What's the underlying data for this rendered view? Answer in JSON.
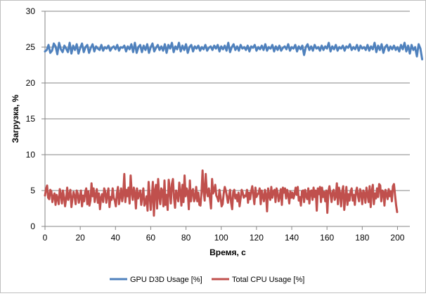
{
  "chart_data": {
    "type": "line",
    "xlabel": "Время, с",
    "ylabel": "Загрузка, %",
    "xlim": [
      0,
      207
    ],
    "ylim": [
      0,
      30
    ],
    "x_ticks": [
      0,
      20,
      40,
      60,
      80,
      100,
      120,
      140,
      160,
      180,
      200
    ],
    "y_ticks": [
      0,
      5,
      10,
      15,
      20,
      25,
      30
    ],
    "grid": "horizontal",
    "legend_position": "bottom",
    "series": [
      {
        "name": "GPU D3D Usage [%]",
        "color": "#4F81BD",
        "values": [
          24.4,
          24.6,
          25.3,
          24.2,
          24.5,
          25.5,
          25.1,
          24.0,
          25.6,
          24.7,
          24.3,
          25.2,
          24.8,
          24.3,
          25.6,
          24.1,
          25.2,
          24.6,
          25.4,
          24.1,
          24.9,
          25.5,
          24.3,
          25.0,
          25.3,
          24.2,
          24.9,
          25.4,
          24.4,
          25.1,
          24.8,
          24.6,
          25.3,
          24.5,
          25.0,
          24.8,
          25.2,
          24.5,
          24.9,
          25.1,
          24.7,
          25.3,
          24.5,
          25.0,
          24.9,
          25.2,
          24.4,
          25.1,
          24.7,
          25.4,
          24.3,
          25.6,
          24.2,
          25.0,
          25.3,
          24.3,
          25.2,
          24.6,
          25.4,
          24.2,
          25.0,
          25.5,
          24.4,
          24.9,
          25.3,
          24.6,
          25.1,
          24.5,
          25.4,
          24.2,
          25.3,
          24.8,
          25.6,
          24.3,
          25.1,
          24.7,
          25.6,
          24.4,
          25.2,
          24.6,
          25.4,
          24.2,
          25.0,
          25.3,
          24.4,
          25.1,
          24.8,
          25.2,
          24.5,
          25.0,
          24.7,
          25.3,
          24.5,
          24.9,
          25.1,
          24.6,
          25.2,
          24.8,
          25.3,
          24.4,
          25.1,
          24.7,
          25.2,
          24.5,
          25.6,
          24.3,
          25.0,
          25.4,
          24.6,
          25.1,
          24.5,
          25.3,
          24.8,
          25.0,
          24.6,
          25.2,
          24.4,
          25.1,
          24.9,
          25.3,
          24.5,
          25.0,
          24.7,
          25.2,
          24.6,
          25.4,
          24.5,
          25.0,
          24.8,
          25.3,
          24.4,
          25.1,
          24.6,
          25.2,
          24.5,
          24.9,
          25.1,
          24.7,
          25.4,
          24.5,
          25.0,
          24.8,
          25.3,
          24.4,
          25.1,
          24.7,
          25.2,
          23.9,
          25.0,
          25.4,
          24.6,
          25.1,
          24.5,
          25.3,
          24.8,
          25.0,
          24.5,
          25.2,
          24.6,
          25.1,
          24.8,
          25.6,
          24.4,
          25.1,
          24.7,
          25.3,
          24.5,
          25.0,
          24.8,
          25.2,
          24.5,
          25.1,
          24.9,
          25.4,
          24.6,
          25.0,
          24.7,
          25.3,
          24.5,
          25.2,
          24.8,
          25.0,
          24.6,
          25.3,
          24.5,
          25.1,
          24.7,
          25.6,
          24.3,
          25.2,
          24.6,
          25.4,
          24.2,
          25.0,
          25.3,
          24.5,
          25.1,
          24.7,
          25.2,
          24.6,
          25.0,
          24.4,
          25.3,
          24.7,
          25.6,
          24.4,
          25.2,
          24.1,
          25.3,
          24.6,
          25.0,
          23.7,
          25.4,
          24.8,
          23.3
        ],
        "x_start": 0,
        "x_step": 1
      },
      {
        "name": "Total CPU Usage [%]",
        "color": "#C0504D",
        "values": [
          4.3,
          5.2,
          5.7,
          4.0,
          3.8,
          5.1,
          4.9,
          3.4,
          4.2,
          4.6,
          3.0,
          4.4,
          3.9,
          3.1,
          5.2,
          4.5,
          3.2,
          5.0,
          4.1,
          2.8,
          3.9,
          5.4,
          3.7,
          4.4,
          5.1,
          2.7,
          3.9,
          4.8,
          4.2,
          3.1,
          5.0,
          4.6,
          3.3,
          4.1,
          5.0,
          2.8,
          4.3,
          3.5,
          4.8,
          5.3,
          3.1,
          4.9,
          2.9,
          3.6,
          6.0,
          4.2,
          5.3,
          3.4,
          4.4,
          5.2,
          3.3,
          4.6,
          2.4,
          4.0,
          4.5,
          3.4,
          5.3,
          4.8,
          3.3,
          4.4,
          5.3,
          2.7,
          4.1,
          3.7,
          5.3,
          4.0,
          3.6,
          2.8,
          4.6,
          5.5,
          3.1,
          4.2,
          5.3,
          3.5,
          4.5,
          7.3,
          3.4,
          5.1,
          4.2,
          5.4,
          3.2,
          7.1,
          4.8,
          3.7,
          5.4,
          4.6,
          2.5,
          5.3,
          3.9,
          4.5,
          5.0,
          3.0,
          4.2,
          5.3,
          2.9,
          3.3,
          4.2,
          2.2,
          6.2,
          4.3,
          2.3,
          4.1,
          6.2,
          1.5,
          5.0,
          5.8,
          2.5,
          6.6,
          4.3,
          3.1,
          5.3,
          5.0,
          2.8,
          6.4,
          3.0,
          4.4,
          2.3,
          6.5,
          5.1,
          3.2,
          5.9,
          6.6,
          4.0,
          2.6,
          5.0,
          4.4,
          3.5,
          6.1,
          4.8,
          2.9,
          5.8,
          3.4,
          7.1,
          4.2,
          5.3,
          4.8,
          2.4,
          6.4,
          3.5,
          4.9,
          5.2,
          3.5,
          4.0,
          5.5,
          3.5,
          4.7,
          3.0,
          2.9,
          4.7,
          7.8,
          4.9,
          3.6,
          7.3,
          4.9,
          4.2,
          5.3,
          3.9,
          2.5,
          6.6,
          4.6,
          5.0,
          5.8,
          4.3,
          4.0,
          3.5,
          5.1,
          4.2,
          2.8,
          3.1,
          4.6,
          5.5,
          5.0,
          4.2,
          3.3,
          4.2,
          5.1,
          3.3,
          2.4,
          4.8,
          5.1,
          3.9,
          4.4,
          3.5,
          4.7,
          2.8,
          3.9,
          5.1,
          4.7,
          4.0,
          4.3,
          4.2,
          5.1,
          3.3,
          4.7,
          3.8,
          4.9,
          5.6,
          4.4,
          3.1,
          5.4,
          4.1,
          4.5,
          4.6,
          5.3,
          3.1,
          5.0,
          4.2,
          3.5,
          5.1,
          4.4,
          2.1,
          5.3,
          4.3,
          3.7,
          5.5,
          4.0,
          4.9,
          5.1,
          3.4,
          5.3,
          4.7,
          3.5,
          4.2,
          5.2,
          3.0,
          5.4,
          4.7,
          5.3,
          3.9,
          5.1,
          4.4,
          3.2,
          4.9,
          4.0,
          4.7,
          3.9,
          4.5,
          5.4,
          4.4,
          5.5,
          3.6,
          4.1,
          2.9,
          4.9,
          5.0,
          3.4,
          5.1,
          4.2,
          3.8,
          5.3,
          3.2,
          4.9,
          5.0,
          3.7,
          5.4,
          4.1,
          5.0,
          2.2,
          5.3,
          4.5,
          5.5,
          3.4,
          5.4,
          4.1,
          4.8,
          3.5,
          5.0,
          1.9,
          4.9,
          5.6,
          4.5,
          3.4,
          4.8,
          5.1,
          3.7,
          4.2,
          6.0,
          3.1,
          5.4,
          4.6,
          2.8,
          4.9,
          5.6,
          2.3,
          4.0,
          5.5,
          3.0,
          4.5,
          3.6,
          4.9,
          5.3,
          3.6,
          4.4,
          3.0,
          4.8,
          5.4,
          4.2,
          3.5,
          5.2,
          4.6,
          3.1,
          5.0,
          4.6,
          3.3,
          5.4,
          4.5,
          3.4,
          5.6,
          2.7,
          4.9,
          5.8,
          3.1,
          4.6,
          3.9,
          5.3,
          4.1,
          5.9,
          5.7,
          3.5,
          5.0,
          4.8,
          2.9,
          5.1,
          4.5,
          3.8,
          5.2,
          4.2,
          4.9,
          3.5,
          5.6,
          5.9,
          4.4,
          3.0,
          2.0
        ],
        "x_start": 0,
        "x_step": 0.6
      }
    ]
  }
}
